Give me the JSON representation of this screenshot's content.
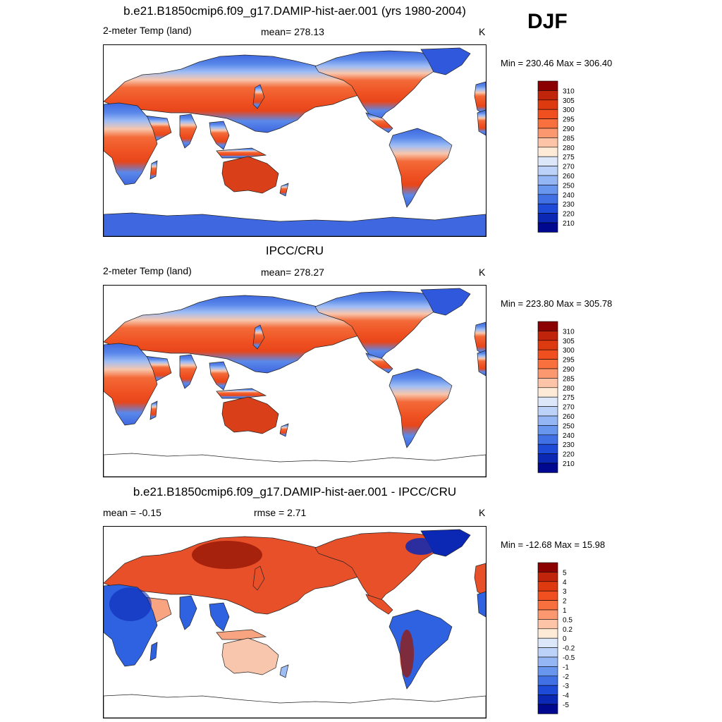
{
  "season": "DJF",
  "panels": [
    {
      "title": "b.e21.B1850cmip6.f09_g17.DAMIP-hist-aer.001 (yrs 1980-2004)",
      "left_label": "2-meter Temp (land)",
      "center_label": "mean= 278.13",
      "units": "K",
      "minmax": "Min = 230.46 Max = 306.40",
      "kind": "model"
    },
    {
      "title": "IPCC/CRU",
      "left_label": "2-meter Temp (land)",
      "center_label": "mean= 278.27",
      "units": "K",
      "minmax": "Min = 223.80 Max = 305.78",
      "kind": "obs"
    },
    {
      "title": "b.e21.B1850cmip6.f09_g17.DAMIP-hist-aer.001 - IPCC/CRU",
      "left_label": "mean =  -0.15",
      "center_label": "rmse =   2.71",
      "units": "K",
      "minmax": "Min = -12.68 Max =  15.98",
      "kind": "diff"
    }
  ],
  "chart_data": [
    {
      "type": "heatmap",
      "title": "b.e21.B1850cmip6.f09_g17.DAMIP-hist-aer.001 (yrs 1980-2004)",
      "variable": "2-meter Temp (land)",
      "units": "K",
      "mean": 278.13,
      "min": 230.46,
      "max": 306.4,
      "colorbar_levels": [
        "310",
        "305",
        "300",
        "295",
        "290",
        "285",
        "280",
        "275",
        "270",
        "260",
        "250",
        "240",
        "230",
        "220",
        "210"
      ],
      "colorbar_colors": [
        "#8b0000",
        "#c0240a",
        "#de3a10",
        "#f05020",
        "#f8703e",
        "#fc9870",
        "#fdc4a8",
        "#fdebd8",
        "#dce8fa",
        "#bcd2f8",
        "#94b6f4",
        "#6896ee",
        "#4070e4",
        "#1d4ad6",
        "#0a28b4",
        "#000890"
      ]
    },
    {
      "type": "heatmap",
      "title": "IPCC/CRU",
      "variable": "2-meter Temp (land)",
      "units": "K",
      "mean": 278.27,
      "min": 223.8,
      "max": 305.78,
      "colorbar_levels": [
        "310",
        "305",
        "300",
        "295",
        "290",
        "285",
        "280",
        "275",
        "270",
        "260",
        "250",
        "240",
        "230",
        "220",
        "210"
      ],
      "colorbar_colors": [
        "#8b0000",
        "#c0240a",
        "#de3a10",
        "#f05020",
        "#f8703e",
        "#fc9870",
        "#fdc4a8",
        "#fdebd8",
        "#dce8fa",
        "#bcd2f8",
        "#94b6f4",
        "#6896ee",
        "#4070e4",
        "#1d4ad6",
        "#0a28b4",
        "#000890"
      ]
    },
    {
      "type": "heatmap",
      "title": "b.e21.B1850cmip6.f09_g17.DAMIP-hist-aer.001 - IPCC/CRU",
      "variable": "2-meter Temp (land) difference",
      "units": "K",
      "mean": -0.15,
      "rmse": 2.71,
      "min": -12.68,
      "max": 15.98,
      "colorbar_levels": [
        "5",
        "4",
        "3",
        "2",
        "1",
        "0.5",
        "0.2",
        "0",
        "-0.2",
        "-0.5",
        "-1",
        "-2",
        "-3",
        "-4",
        "-5"
      ],
      "colorbar_colors": [
        "#8b0000",
        "#c0240a",
        "#de3a10",
        "#f05020",
        "#f8703e",
        "#fc9870",
        "#fdc4a8",
        "#fdebd8",
        "#dce8fa",
        "#bcd2f8",
        "#94b6f4",
        "#6896ee",
        "#4070e4",
        "#1d4ad6",
        "#0a28b4",
        "#000890"
      ]
    }
  ]
}
